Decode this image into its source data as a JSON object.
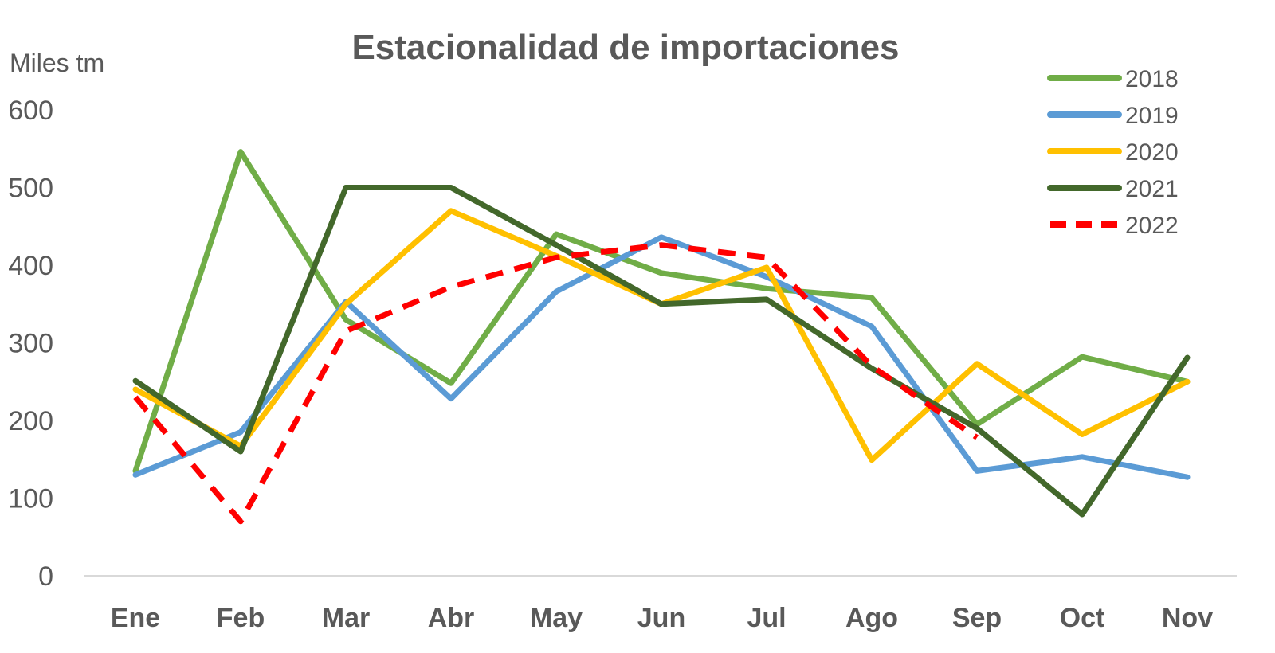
{
  "chart_data": {
    "type": "line",
    "title": "Estacionalidad de importaciones",
    "ylabel": "Miles tm",
    "xlabel": "",
    "categories": [
      "Ene",
      "Feb",
      "Mar",
      "Abr",
      "May",
      "Jun",
      "Jul",
      "Ago",
      "Sep",
      "Oct",
      "Nov"
    ],
    "ylim": [
      0,
      600
    ],
    "yticks": [
      "0",
      "100",
      "200",
      "300",
      "400",
      "500",
      "600"
    ],
    "grid": false,
    "legend_position": "top-right",
    "series": [
      {
        "name": "2018",
        "color": "#70AD47",
        "dashed": false,
        "values": [
          135,
          546,
          330,
          248,
          440,
          390,
          370,
          358,
          195,
          282,
          250
        ]
      },
      {
        "name": "2019",
        "color": "#5B9BD5",
        "dashed": false,
        "values": [
          130,
          185,
          353,
          228,
          366,
          436,
          385,
          321,
          135,
          153,
          127
        ]
      },
      {
        "name": "2020",
        "color": "#FFC000",
        "dashed": false,
        "values": [
          240,
          167,
          350,
          470,
          412,
          350,
          397,
          149,
          273,
          182,
          250
        ]
      },
      {
        "name": "2021",
        "color": "#43682B",
        "dashed": false,
        "values": [
          251,
          160,
          500,
          500,
          426,
          350,
          356,
          267,
          190,
          79,
          281
        ]
      },
      {
        "name": "2022",
        "color": "#FF0000",
        "dashed": true,
        "values": [
          230,
          70,
          315,
          372,
          410,
          426,
          410,
          270,
          178,
          null,
          null
        ]
      }
    ]
  }
}
